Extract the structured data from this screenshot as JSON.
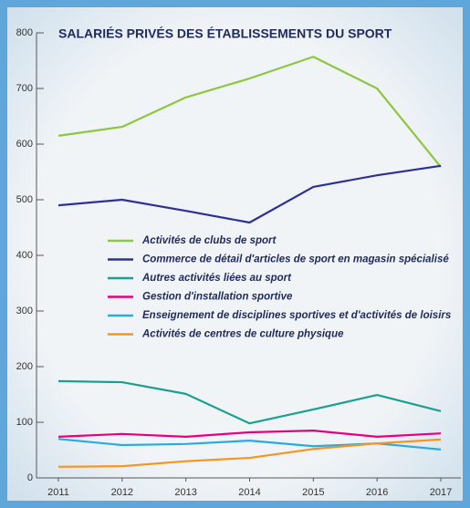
{
  "chart_data": {
    "type": "line",
    "title": "SALARIÉS PRIVÉS DES ÉTABLISSEMENTS DU SPORT",
    "categories": [
      "2011",
      "2012",
      "2013",
      "2014",
      "2015",
      "2016",
      "2017"
    ],
    "series": [
      {
        "name": "Activités de clubs de sport",
        "color": "#8dc63f",
        "values": [
          615,
          631,
          684,
          718,
          757,
          700,
          559
        ]
      },
      {
        "name": "Commerce de détail d'articles de sport en magasin spécialisé",
        "color": "#2e3192",
        "values": [
          490,
          500,
          480,
          459,
          523,
          544,
          561
        ]
      },
      {
        "name": "Autres activités liées au sport",
        "color": "#1aa091",
        "values": [
          174,
          172,
          151,
          98,
          123,
          149,
          120
        ]
      },
      {
        "name": "Gestion d'installation sportive",
        "color": "#e6007e",
        "values": [
          74,
          79,
          74,
          82,
          85,
          74,
          80
        ]
      },
      {
        "name": "Enseignement de disciplines sportives et d'activités de loisirs",
        "color": "#29abe2",
        "values": [
          70,
          59,
          61,
          67,
          57,
          62,
          51
        ]
      },
      {
        "name": "Activités de centres de culture physique",
        "color": "#f7941d",
        "values": [
          20,
          21,
          30,
          36,
          52,
          62,
          69
        ]
      }
    ],
    "ylim": [
      0,
      800
    ],
    "yticks": [
      0,
      100,
      200,
      300,
      400,
      500,
      600,
      700,
      800
    ],
    "grid": false
  }
}
